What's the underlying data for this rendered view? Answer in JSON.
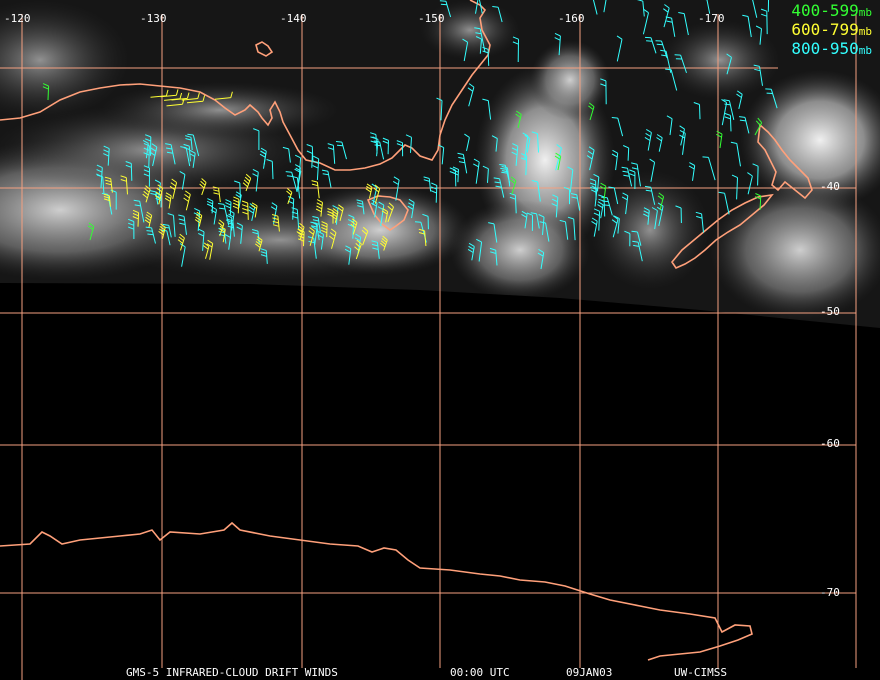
{
  "map": {
    "longitude_labels": [
      "-120",
      "-130",
      "-140",
      "-150",
      "-160",
      "-170"
    ],
    "latitude_labels": [
      "-40",
      "-50",
      "-60",
      "-70"
    ],
    "graticule_color": "#f4a080",
    "coastline_color": "#ffa07a",
    "background_color": "#000000"
  },
  "legend": {
    "items": [
      {
        "range": "400-599",
        "unit": "mb",
        "color": "#33ff33"
      },
      {
        "range": "600-799",
        "unit": "mb",
        "color": "#ffff33"
      },
      {
        "range": "800-950",
        "unit": "mb",
        "color": "#33ffff"
      }
    ]
  },
  "footer": {
    "product": "GMS-5 INFRARED-CLOUD DRIFT WINDS",
    "time": "00:00 UTC",
    "date": "09JAN03",
    "source": "UW-CIMSS"
  }
}
